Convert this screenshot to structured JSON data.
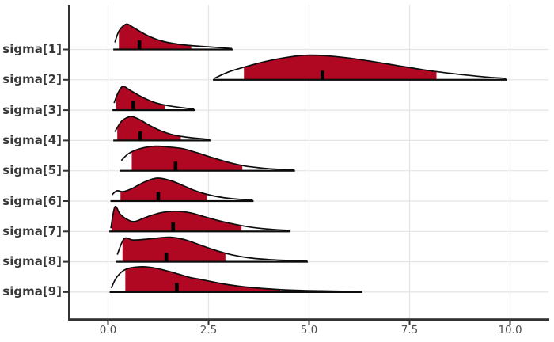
{
  "colors": {
    "fill": "#B00822",
    "outline": "#0d0d0d",
    "point_tick": "#000000",
    "grid": "#e4e4e4",
    "axis": "#333333",
    "y_label": "#383838",
    "x_label": "#4d4d4d",
    "background": "#ffffff"
  },
  "chart_data": {
    "type": "area",
    "subtype": "ridgeline-posterior-intervals",
    "title": "",
    "xlabel": "",
    "ylabel": "",
    "grid": true,
    "legend": false,
    "xlim": [
      -0.97,
      10.95
    ],
    "x_ticks": [
      0,
      2.5,
      5,
      7.5,
      10
    ],
    "x_tick_labels": [
      "0.0",
      "2.5",
      "5.0",
      "7.5",
      "10.0"
    ],
    "parameters": [
      {
        "label": "sigma[1]",
        "point_estimate": 0.78,
        "interval": [
          0.27,
          2.07
        ],
        "curve": [
          [
            0.17,
            9
          ],
          [
            0.28,
            24
          ],
          [
            0.46,
            32
          ],
          [
            0.62,
            28
          ],
          [
            0.82,
            22
          ],
          [
            1.05,
            16
          ],
          [
            1.35,
            10.5
          ],
          [
            1.7,
            7
          ],
          [
            2.05,
            5
          ],
          [
            2.45,
            3.5
          ],
          [
            2.8,
            2.2
          ],
          [
            3.08,
            1.2
          ]
        ]
      },
      {
        "label": "sigma[2]",
        "point_estimate": 5.33,
        "interval": [
          3.38,
          8.17
        ],
        "curve": [
          [
            2.65,
            2
          ],
          [
            3.0,
            10
          ],
          [
            3.38,
            16
          ],
          [
            3.9,
            23
          ],
          [
            4.4,
            28
          ],
          [
            4.9,
            31
          ],
          [
            5.4,
            30.5
          ],
          [
            6.0,
            27.5
          ],
          [
            6.6,
            23
          ],
          [
            7.2,
            18
          ],
          [
            7.8,
            13
          ],
          [
            8.3,
            9.5
          ],
          [
            8.9,
            6
          ],
          [
            9.4,
            3.5
          ],
          [
            9.9,
            1.8
          ]
        ]
      },
      {
        "label": "sigma[3]",
        "point_estimate": 0.63,
        "interval": [
          0.2,
          1.41
        ],
        "curve": [
          [
            0.15,
            9
          ],
          [
            0.25,
            22
          ],
          [
            0.37,
            30
          ],
          [
            0.52,
            26
          ],
          [
            0.72,
            20
          ],
          [
            0.95,
            14
          ],
          [
            1.2,
            9
          ],
          [
            1.5,
            5.5
          ],
          [
            1.85,
            3
          ],
          [
            2.14,
            1.2
          ]
        ]
      },
      {
        "label": "sigma[4]",
        "point_estimate": 0.8,
        "interval": [
          0.23,
          1.81
        ],
        "curve": [
          [
            0.17,
            11
          ],
          [
            0.33,
            24
          ],
          [
            0.5,
            29.5
          ],
          [
            0.62,
            30
          ],
          [
            0.8,
            26
          ],
          [
            1.0,
            20
          ],
          [
            1.25,
            13.5
          ],
          [
            1.55,
            8
          ],
          [
            1.9,
            4.5
          ],
          [
            2.2,
            2.8
          ],
          [
            2.53,
            1.2
          ]
        ]
      },
      {
        "label": "sigma[5]",
        "point_estimate": 1.68,
        "interval": [
          0.59,
          3.34
        ],
        "curve": [
          [
            0.33,
            13
          ],
          [
            0.52,
            22
          ],
          [
            0.8,
            28
          ],
          [
            1.15,
            31
          ],
          [
            1.5,
            30
          ],
          [
            1.85,
            28
          ],
          [
            2.2,
            23
          ],
          [
            2.6,
            16.5
          ],
          [
            3.0,
            10.5
          ],
          [
            3.4,
            6
          ],
          [
            3.9,
            3
          ],
          [
            4.3,
            1.6
          ],
          [
            4.63,
            0.8
          ]
        ]
      },
      {
        "label": "sigma[6]",
        "point_estimate": 1.25,
        "interval": [
          0.31,
          2.46
        ],
        "curve": [
          [
            0.1,
            8
          ],
          [
            0.22,
            13
          ],
          [
            0.38,
            12
          ],
          [
            0.6,
            16
          ],
          [
            0.9,
            24
          ],
          [
            1.22,
            29
          ],
          [
            1.55,
            26
          ],
          [
            1.85,
            20
          ],
          [
            2.15,
            13.5
          ],
          [
            2.5,
            8
          ],
          [
            2.85,
            4.5
          ],
          [
            3.2,
            2.5
          ],
          [
            3.6,
            1.2
          ]
        ]
      },
      {
        "label": "sigma[7]",
        "point_estimate": 1.62,
        "interval": [
          0.1,
          3.32
        ],
        "curve": [
          [
            0.07,
            4
          ],
          [
            0.17,
            31
          ],
          [
            0.3,
            22
          ],
          [
            0.48,
            15
          ],
          [
            0.66,
            12.5
          ],
          [
            0.95,
            18
          ],
          [
            1.3,
            23.5
          ],
          [
            1.68,
            25.5
          ],
          [
            2.05,
            23.5
          ],
          [
            2.4,
            18.5
          ],
          [
            2.8,
            13
          ],
          [
            3.2,
            8.5
          ],
          [
            3.6,
            5
          ],
          [
            4.1,
            2.5
          ],
          [
            4.52,
            1.2
          ]
        ]
      },
      {
        "label": "sigma[8]",
        "point_estimate": 1.45,
        "interval": [
          0.36,
          2.92
        ],
        "curve": [
          [
            0.23,
            9
          ],
          [
            0.4,
            29
          ],
          [
            0.62,
            27.5
          ],
          [
            0.95,
            28.5
          ],
          [
            1.25,
            30
          ],
          [
            1.55,
            31
          ],
          [
            1.9,
            28
          ],
          [
            2.3,
            21
          ],
          [
            2.7,
            14
          ],
          [
            3.1,
            8.5
          ],
          [
            3.5,
            5
          ],
          [
            4.0,
            2.8
          ],
          [
            4.5,
            1.6
          ],
          [
            4.95,
            1
          ]
        ]
      },
      {
        "label": "sigma[9]",
        "point_estimate": 1.71,
        "interval": [
          0.43,
          4.28
        ],
        "curve": [
          [
            0.08,
            5
          ],
          [
            0.22,
            19
          ],
          [
            0.45,
            29
          ],
          [
            0.85,
            32
          ],
          [
            1.2,
            30
          ],
          [
            1.6,
            25
          ],
          [
            2.0,
            19
          ],
          [
            2.4,
            15
          ],
          [
            2.9,
            10
          ],
          [
            3.5,
            6
          ],
          [
            4.3,
            3
          ],
          [
            5.3,
            1.5
          ],
          [
            6.3,
            0.6
          ]
        ]
      }
    ]
  }
}
